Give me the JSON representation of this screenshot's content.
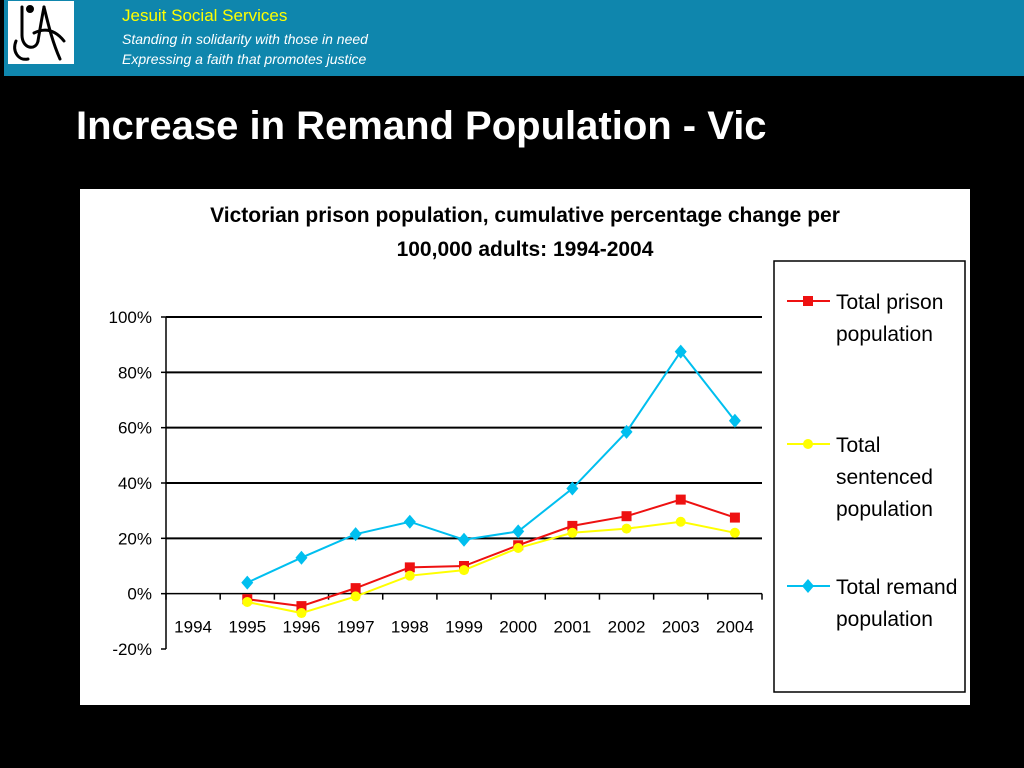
{
  "header": {
    "org_name": "Jesuit Social Services",
    "tagline_1": "Standing in solidarity with those in need",
    "tagline_2": "Expressing a faith that promotes justice"
  },
  "slide": {
    "title": "Increase in Remand Population - Vic"
  },
  "colors": {
    "banner": "#0f86ad",
    "org_name": "#ffff00",
    "background": "#000000"
  },
  "logo": {
    "icon": "jss-logo-icon"
  },
  "chart_data": {
    "type": "line",
    "title_lines": [
      "Victorian prison population, cumulative percentage change per",
      "100,000 adults: 1994-2004"
    ],
    "categories": [
      "1994",
      "1995",
      "1996",
      "1997",
      "1998",
      "1999",
      "2000",
      "2001",
      "2002",
      "2003",
      "2004"
    ],
    "y_ticks": [
      "100%",
      "80%",
      "60%",
      "40%",
      "20%",
      "0%",
      "-20%"
    ],
    "ylim": [
      -20,
      100
    ],
    "grid": true,
    "legend_position": "right",
    "series": [
      {
        "name": "Total prison population",
        "color": "#ee1111",
        "marker": "square",
        "values": [
          null,
          -2,
          -4.5,
          2,
          9.5,
          10,
          17.5,
          24.5,
          28,
          34,
          27.5
        ]
      },
      {
        "name": "Total sentenced population",
        "color": "#ffff00",
        "marker": "circle",
        "values": [
          null,
          -3,
          -7,
          -1,
          6.5,
          8.5,
          16.5,
          22,
          23.5,
          26,
          22
        ]
      },
      {
        "name": "Total remand population",
        "color": "#00bfef",
        "marker": "diamond",
        "values": [
          null,
          4,
          13,
          21.5,
          26,
          19.5,
          22.5,
          38,
          58.5,
          87.5,
          62.5
        ]
      }
    ],
    "legend_lines": [
      [
        "Total prison",
        "population"
      ],
      [
        "Total",
        "sentenced",
        "population"
      ],
      [
        "Total remand",
        "population"
      ]
    ]
  }
}
